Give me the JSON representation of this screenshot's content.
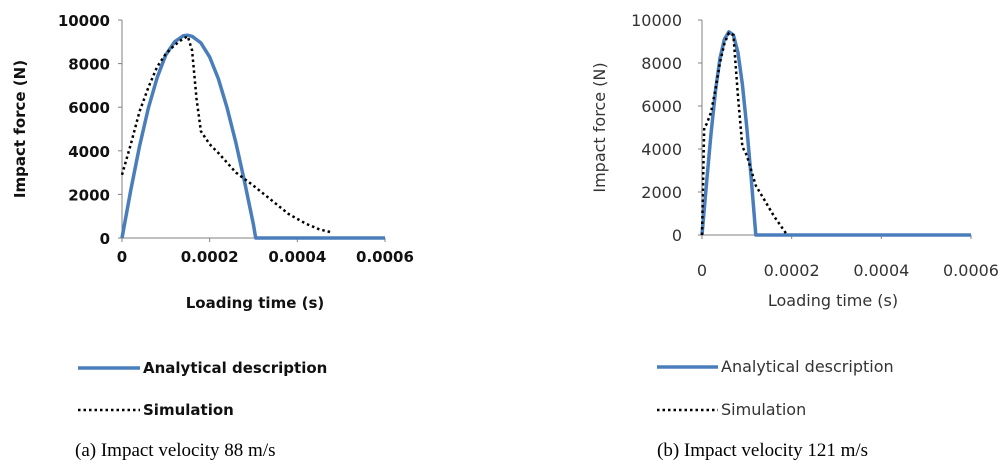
{
  "captions": {
    "a": "(a) Impact velocity 88 m/s",
    "b": "(b) Impact velocity 121 m/s"
  },
  "colors": {
    "analytical": "#4a7ebb",
    "simulation": "#000000",
    "axis": "#808080"
  },
  "chart_data": [
    {
      "type": "line",
      "title": "",
      "xlabel": "Loading time (s)",
      "ylabel": "Impact force  (N)",
      "xlim": [
        0,
        0.0006
      ],
      "ylim": [
        0,
        10000
      ],
      "xticks": [
        0,
        0.0002,
        0.0004,
        0.0006
      ],
      "xtick_labels": [
        "0",
        "0.0002",
        "0.0004",
        "0.0006"
      ],
      "yticks": [
        0,
        2000,
        4000,
        6000,
        8000,
        10000
      ],
      "ytick_labels": [
        "0",
        "2000",
        "4000",
        "6000",
        "8000",
        "10000"
      ],
      "grid": false,
      "legend": "below",
      "series": [
        {
          "name": "Analytical description",
          "style": "solid",
          "x": [
            0,
            1e-05,
            2e-05,
            4e-05,
            6e-05,
            8e-05,
            0.0001,
            0.00012,
            0.00014,
            0.00015,
            0.00016,
            0.00018,
            0.0002,
            0.00022,
            0.00024,
            0.00026,
            0.00028,
            0.0003,
            0.000305,
            0.00035,
            0.0004,
            0.0005,
            0.0006
          ],
          "y": [
            0,
            1100,
            2200,
            4200,
            5950,
            7350,
            8400,
            9000,
            9280,
            9300,
            9250,
            8950,
            8300,
            7300,
            5950,
            4350,
            2550,
            600,
            0,
            0,
            0,
            0,
            0
          ]
        },
        {
          "name": "Simulation",
          "style": "dotted",
          "x": [
            0,
            1e-05,
            2e-05,
            4e-05,
            6e-05,
            8e-05,
            0.0001,
            0.00012,
            0.00014,
            0.00015,
            0.00016,
            0.00017,
            0.00018,
            0.0002,
            0.00022,
            0.00024,
            0.00026,
            0.0003,
            0.00034,
            0.00038,
            0.00042,
            0.00045,
            0.00048
          ],
          "y": [
            2900,
            3600,
            4300,
            5800,
            6900,
            7850,
            8450,
            8850,
            9150,
            9250,
            8600,
            6400,
            4900,
            4300,
            3900,
            3450,
            3000,
            2400,
            1750,
            1100,
            650,
            400,
            250
          ]
        }
      ]
    },
    {
      "type": "line",
      "title": "",
      "xlabel": "Loading time (s)",
      "ylabel": "Impact force (N)",
      "xlim": [
        0,
        0.0006
      ],
      "ylim": [
        0,
        10000
      ],
      "xticks": [
        0,
        0.0002,
        0.0004,
        0.0006
      ],
      "xtick_labels": [
        "0",
        "0.0002",
        "0.0004",
        "0.0006"
      ],
      "yticks": [
        0,
        2000,
        4000,
        6000,
        8000,
        10000
      ],
      "ytick_labels": [
        "0",
        "2000",
        "4000",
        "6000",
        "8000",
        "10000"
      ],
      "grid": false,
      "legend": "below",
      "series": [
        {
          "name": "Analytical description",
          "style": "solid",
          "x": [
            0,
            1e-05,
            2e-05,
            3e-05,
            4e-05,
            5e-05,
            6e-05,
            7e-05,
            8e-05,
            9e-05,
            0.0001,
            0.00011,
            0.00012,
            0.0002,
            0.0004,
            0.0006
          ],
          "y": [
            0,
            2400,
            4700,
            6700,
            8200,
            9100,
            9450,
            9300,
            8500,
            7000,
            5000,
            2600,
            0,
            0,
            0,
            0
          ]
        },
        {
          "name": "Simulation",
          "style": "dotted",
          "x": [
            0,
            5e-06,
            1e-05,
            2e-05,
            3e-05,
            4e-05,
            5e-05,
            6e-05,
            7e-05,
            8e-05,
            9e-05,
            0.0001,
            0.00012,
            0.00014,
            0.00016,
            0.00018,
            0.00019
          ],
          "y": [
            0,
            5000,
            5150,
            5700,
            6800,
            8000,
            8900,
            9400,
            9300,
            6500,
            4100,
            3700,
            2300,
            1600,
            900,
            300,
            0
          ]
        }
      ]
    }
  ]
}
